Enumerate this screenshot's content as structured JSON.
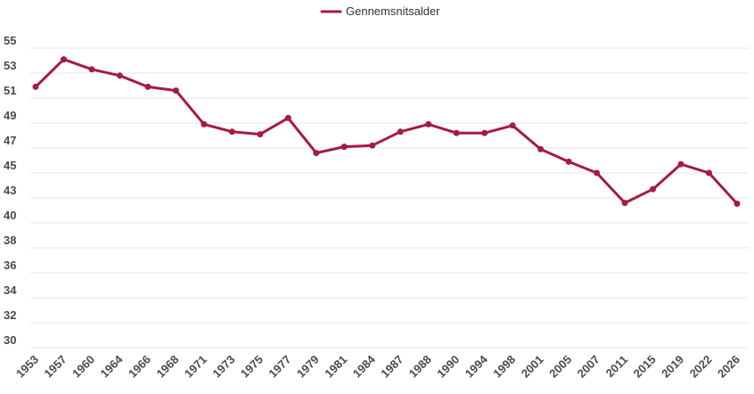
{
  "chart_data": {
    "type": "line",
    "categories": [
      "1953",
      "1957",
      "1960",
      "1964",
      "1966",
      "1968",
      "1971",
      "1973",
      "1975",
      "1977",
      "1979",
      "1981",
      "1984",
      "1987",
      "1988",
      "1990",
      "1994",
      "1998",
      "2001",
      "2005",
      "2007",
      "2011",
      "2015",
      "2019",
      "2022",
      "2026"
    ],
    "series": [
      {
        "name": "Gennemsnitsalder",
        "color": "#a51c3e",
        "values": [
          51.9,
          54.1,
          53.3,
          52.8,
          51.9,
          51.6,
          48.9,
          48.3,
          48.1,
          49.4,
          46.6,
          47.1,
          47.2,
          48.3,
          48.9,
          48.2,
          48.2,
          48.8,
          46.9,
          45.9,
          45.0,
          42.4,
          43.7,
          45.7,
          45.0,
          42.3
        ]
      }
    ],
    "y_ticks": [
      "30",
      "32",
      "34",
      "36",
      "38",
      "40",
      "43",
      "45",
      "47",
      "49",
      "51",
      "53",
      "55"
    ],
    "legend_position": "top-center",
    "grid": true
  }
}
